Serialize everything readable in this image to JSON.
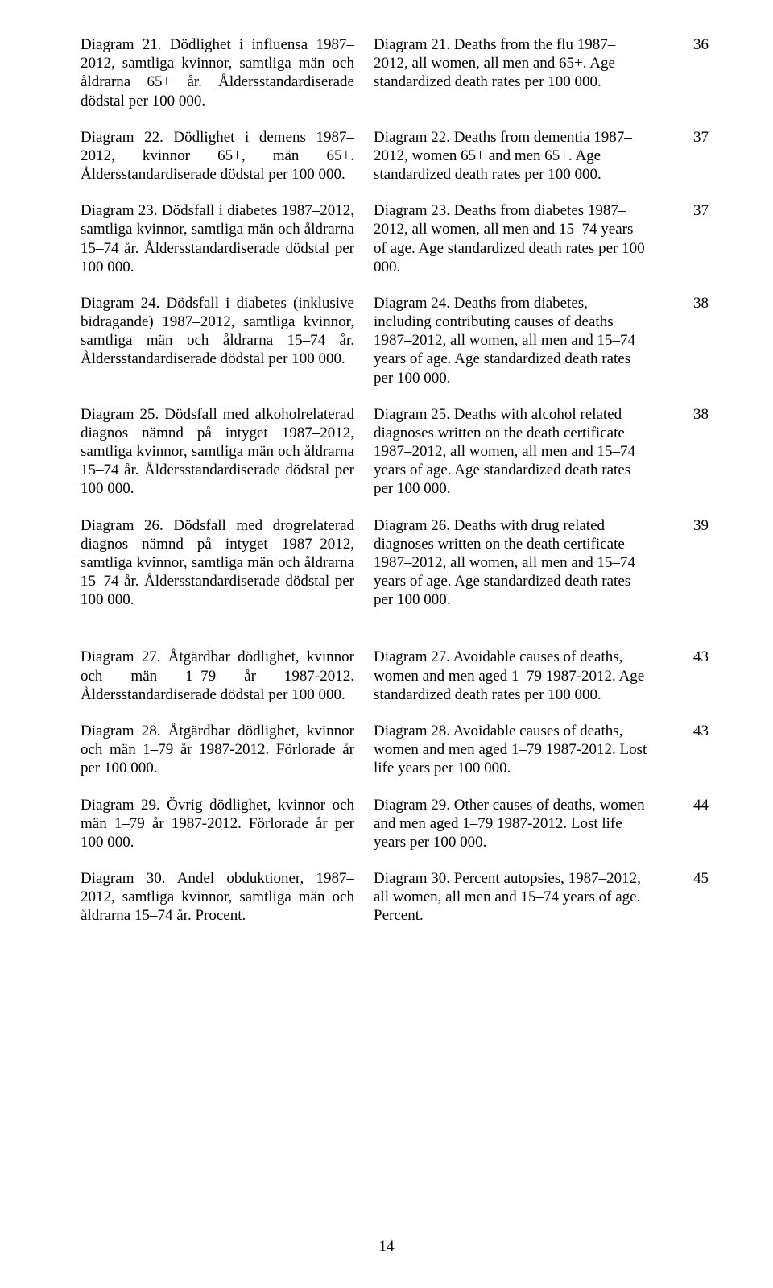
{
  "entries": [
    {
      "sv": "Diagram 21. Dödlighet i influensa 1987–2012, samtliga kvinnor, samtliga män och åldrarna 65+ år. Åldersstandardiserade dödstal per 100 000.",
      "en": "Diagram 21. Deaths from the flu 1987–2012, all women, all men and 65+. Age standardized death rates per 100 000.",
      "page": "36"
    },
    {
      "sv": "Diagram 22. Dödlighet i demens 1987–2012, kvinnor 65+, män 65+. Åldersstandardiserade dödstal per 100 000.",
      "en": "Diagram 22. Deaths from dementia 1987–2012, women 65+ and men 65+. Age standardized death rates per 100 000.",
      "page": "37"
    },
    {
      "sv": "Diagram 23. Dödsfall i diabetes 1987–2012, samtliga kvinnor, samtliga män och åldrarna 15–74 år. Åldersstandardiserade dödstal per 100 000.",
      "en": "Diagram 23. Deaths from diabetes 1987–2012, all women, all men and 15–74 years of age. Age standardized death rates per 100 000.",
      "page": "37"
    },
    {
      "sv": "Diagram 24. Dödsfall i diabetes (inklusive bidragande) 1987–2012, samtliga kvinnor, samtliga män och åldrarna 15–74 år. Åldersstandardiserade dödstal per 100 000.",
      "en": "Diagram 24. Deaths from diabetes, including contributing causes of deaths 1987–2012, all women, all men and 15–74 years of age. Age standardized death rates per 100 000.",
      "page": "38"
    },
    {
      "sv": "Diagram 25. Dödsfall med alkoholrelaterad diagnos nämnd på intyget 1987–2012, samtliga kvinnor, samtliga män och åldrarna 15–74 år. Åldersstandardiserade dödstal per 100 000.",
      "en": "Diagram 25. Deaths with alcohol related diagnoses written on the death certificate 1987–2012, all women, all men and 15–74 years of age. Age standardized death rates per 100 000.",
      "page": "38"
    },
    {
      "sv": "Diagram 26. Dödsfall med drogrelaterad diagnos nämnd på intyget 1987–2012, samtliga kvinnor, samtliga män och åldrarna 15–74 år. Åldersstandardiserade dödstal per 100 000.",
      "en": "Diagram 26. Deaths with drug related diagnoses written on the death certificate 1987–2012, all women, all men and 15–74 years of age. Age standardized death rates per 100 000.",
      "page": "39"
    }
  ],
  "entries2": [
    {
      "sv": "Diagram 27. Åtgärdbar dödlighet, kvinnor och män 1–79 år 1987-2012. Åldersstandardiserade dödstal per 100 000.",
      "en": "Diagram 27. Avoidable causes of deaths, women and men aged 1–79 1987-2012. Age standardized death rates per 100 000.",
      "page": "43"
    },
    {
      "sv": "Diagram 28. Åtgärdbar dödlighet, kvinnor och män 1–79 år 1987-2012. Förlorade år per 100 000.",
      "en": "Diagram 28. Avoidable causes of deaths, women and men aged 1–79 1987-2012. Lost life years per 100 000.",
      "page": "43"
    },
    {
      "sv": "Diagram 29. Övrig dödlighet, kvinnor och män 1–79 år 1987-2012. Förlorade år per 100 000.",
      "en": "Diagram 29. Other causes of deaths, women and men aged 1–79 1987-2012. Lost life years per 100 000.",
      "page": "44"
    },
    {
      "sv": "Diagram 30. Andel obduktioner, 1987–2012, samtliga kvinnor, samtliga män och åldrarna 15–74 år. Procent.",
      "en": "Diagram 30. Percent autopsies, 1987–2012, all women, all men and 15–74 years of age. Percent.",
      "page": "45"
    }
  ],
  "pageNumber": "14"
}
